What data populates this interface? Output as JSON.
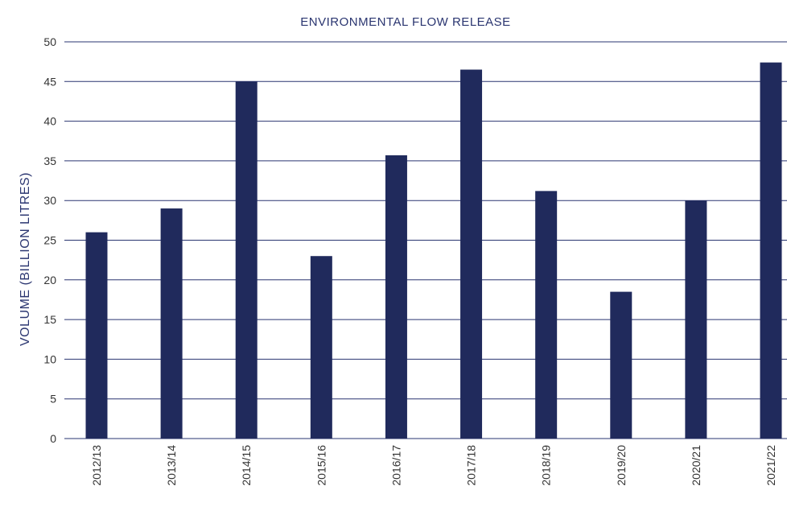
{
  "chart_data": {
    "type": "bar",
    "title": "ENVIRONMENTAL FLOW RELEASE",
    "xlabel": "",
    "ylabel": "VOLUME (BILLION LITRES)",
    "categories": [
      "2012/13",
      "2013/14",
      "2014/15",
      "2015/16",
      "2016/17",
      "2017/18",
      "2018/19",
      "2019/20",
      "2020/21",
      "2021/22"
    ],
    "values": [
      26,
      29,
      45,
      23,
      35.7,
      46.5,
      31.2,
      18.5,
      30,
      47.4
    ],
    "ylim": [
      0,
      50
    ],
    "yticks": [
      0,
      5,
      10,
      15,
      20,
      25,
      30,
      35,
      40,
      45,
      50
    ],
    "grid": true,
    "legend": "none",
    "colors": {
      "bar": "#202a5c",
      "title": "#2a3570",
      "ylabel": "#2a3570",
      "grid": "#2a3570",
      "tick_text": "#333333"
    }
  }
}
